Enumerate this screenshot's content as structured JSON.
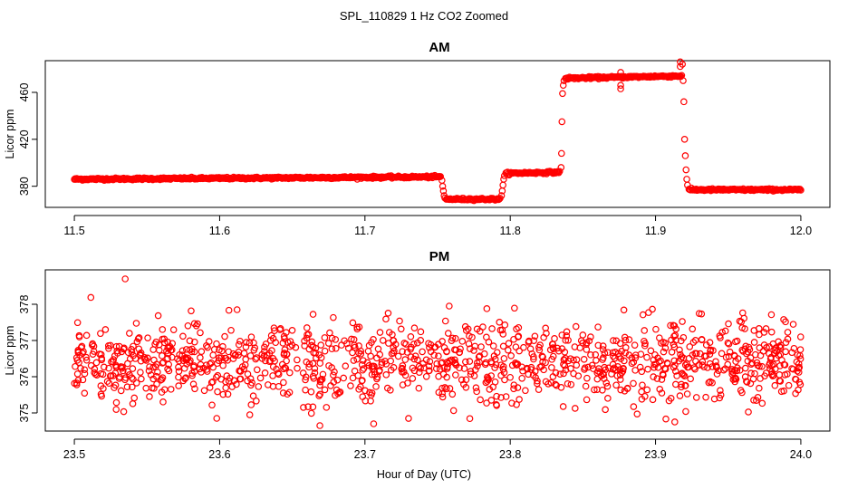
{
  "figure": {
    "title": "SPL_110829  1 Hz CO2 Zoomed",
    "xlabel": "Hour of Day (UTC)"
  },
  "colors": {
    "points": "#ff0000",
    "axes": "#000000",
    "background": "#ffffff"
  },
  "chart_data": [
    {
      "type": "scatter",
      "title": "AM",
      "ylabel": "Licor ppm",
      "xlim": [
        11.48,
        12.02
      ],
      "ylim": [
        362,
        487
      ],
      "xticks": [
        11.5,
        11.6,
        11.7,
        11.8,
        11.9,
        12.0
      ],
      "xtick_labels": [
        "11.5",
        "11.6",
        "11.7",
        "11.8",
        "11.9",
        "12.0"
      ],
      "yticks": [
        380,
        420,
        460
      ],
      "ytick_labels": [
        "380",
        "420",
        "460"
      ],
      "series": [
        {
          "name": "CO2",
          "marker": "open-circle",
          "segments": [
            {
              "x_start": 11.5,
              "x_end": 11.752,
              "y_start": 386,
              "y_end": 388,
              "noise": 1.0
            },
            {
              "x_start": 11.756,
              "x_end": 11.793,
              "y_start": 369,
              "y_end": 369,
              "noise": 1.0
            },
            {
              "x_start": 11.797,
              "x_end": 11.834,
              "y_start": 391,
              "y_end": 392,
              "noise": 1.0
            },
            {
              "x_start": 11.838,
              "x_end": 11.918,
              "y_start": 472,
              "y_end": 474,
              "noise": 1.0
            },
            {
              "x_start": 11.923,
              "x_end": 12.0,
              "y_start": 377,
              "y_end": 377,
              "noise": 1.0
            }
          ],
          "transitions": [
            {
              "x": [
                11.753,
                11.7535,
                11.754,
                11.7545,
                11.755
              ],
              "y": [
                385,
                380,
                376,
                372,
                370
              ]
            },
            {
              "x": [
                11.794,
                11.7945,
                11.795,
                11.7955,
                11.796
              ],
              "y": [
                372,
                376,
                381,
                386,
                389
              ]
            },
            {
              "x": [
                11.835,
                11.8353,
                11.8356,
                11.836,
                11.8365,
                11.837
              ],
              "y": [
                396,
                408,
                435,
                459,
                466,
                470
              ]
            },
            {
              "x": [
                11.9185,
                11.919,
                11.9195,
                11.92,
                11.9205,
                11.921,
                11.9215,
                11.922
              ],
              "y": [
                484,
                470,
                452,
                420,
                406,
                394,
                386,
                381
              ]
            }
          ],
          "outliers": [
            {
              "x": 11.876,
              "y": 463
            },
            {
              "x": 11.876,
              "y": 466
            },
            {
              "x": 11.876,
              "y": 477
            },
            {
              "x": 11.917,
              "y": 486
            },
            {
              "x": 11.917,
              "y": 482
            }
          ]
        }
      ]
    },
    {
      "type": "scatter",
      "title": "PM",
      "ylabel": "Licor ppm",
      "xlim": [
        23.48,
        24.02
      ],
      "ylim": [
        374.5,
        378.95
      ],
      "xticks": [
        23.5,
        23.6,
        23.7,
        23.8,
        23.9,
        24.0
      ],
      "xtick_labels": [
        "23.5",
        "23.6",
        "23.7",
        "23.8",
        "23.9",
        "24.0"
      ],
      "yticks": [
        375,
        376,
        377,
        378
      ],
      "ytick_labels": [
        "375",
        "376",
        "377",
        "378"
      ],
      "series": [
        {
          "name": "CO2",
          "marker": "open-circle",
          "x_range": [
            23.5,
            24.0
          ],
          "center": 376.4,
          "spread": 0.55,
          "count": 1200,
          "outliers": [
            {
              "x": 23.535,
              "y": 378.7
            },
            {
              "x": 23.612,
              "y": 377.85
            },
            {
              "x": 23.706,
              "y": 374.7
            },
            {
              "x": 23.758,
              "y": 377.95
            },
            {
              "x": 23.598,
              "y": 374.85
            }
          ]
        }
      ]
    }
  ]
}
